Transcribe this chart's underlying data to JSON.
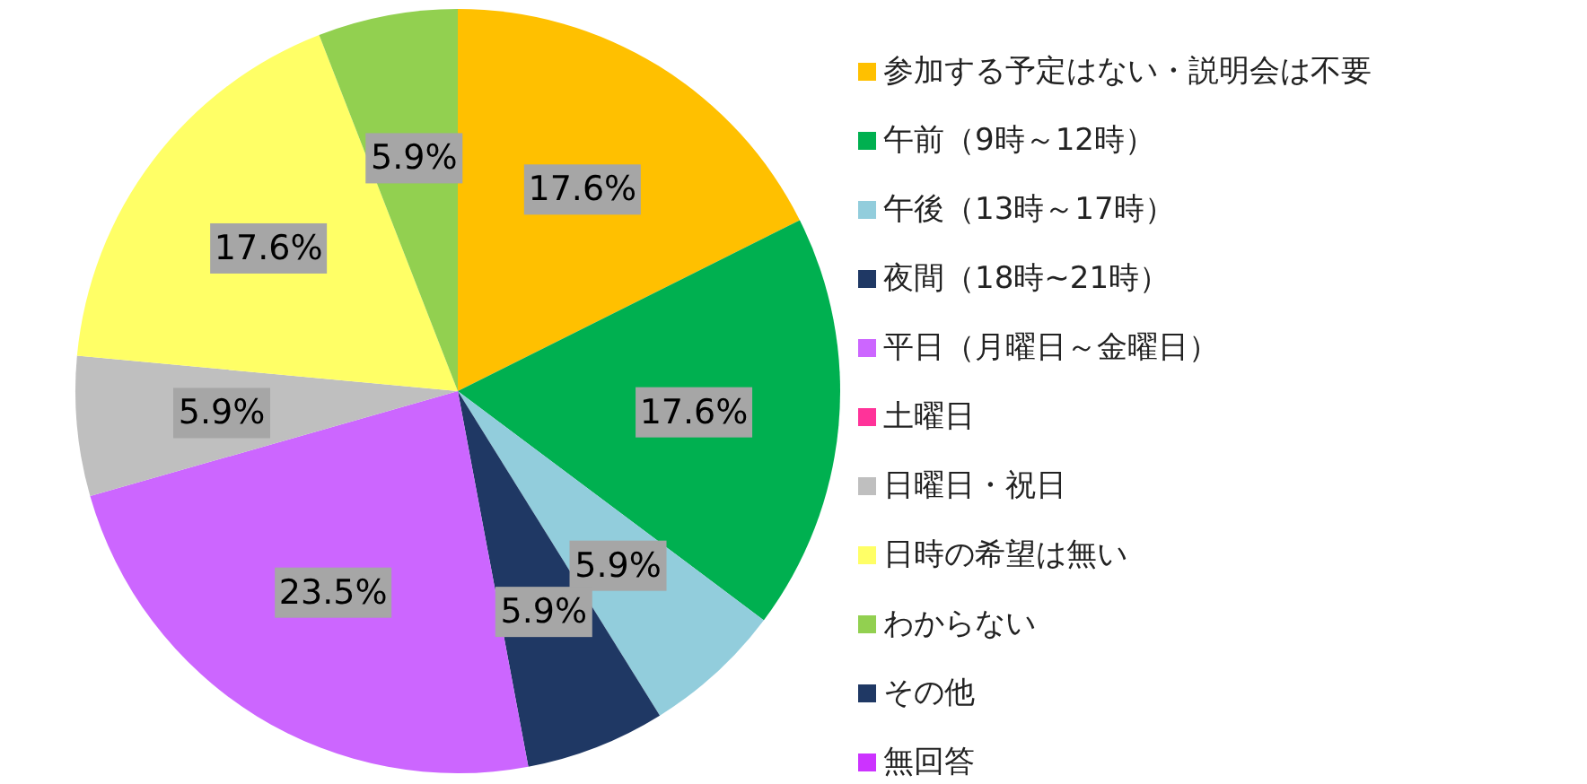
{
  "chart_data": {
    "type": "pie",
    "categories": [
      "参加する予定はない・説明会は不要",
      "午前（9時～12時）",
      "午後（13時～17時）",
      "夜間（18時~21時）",
      "平日（月曜日～金曜日）",
      "土曜日",
      "日曜日・祝日",
      "日時の希望は無い",
      "わからない",
      "その他",
      "無回答"
    ],
    "values": [
      17.6,
      17.6,
      5.9,
      5.9,
      23.5,
      0,
      5.9,
      17.6,
      5.9,
      0,
      0
    ],
    "colors": [
      "#ffc000",
      "#00b050",
      "#92cddc",
      "#1f3864",
      "#cc66ff",
      "#ff3399",
      "#bfbfbf",
      "#ffff66",
      "#92d050",
      "#1f3864",
      "#cc33ff"
    ],
    "value_labels": [
      "17.6%",
      "17.6%",
      "5.9%",
      "5.9%",
      "23.5%",
      null,
      "5.9%",
      "17.6%",
      "5.9%",
      null,
      null
    ],
    "legend": "right"
  }
}
